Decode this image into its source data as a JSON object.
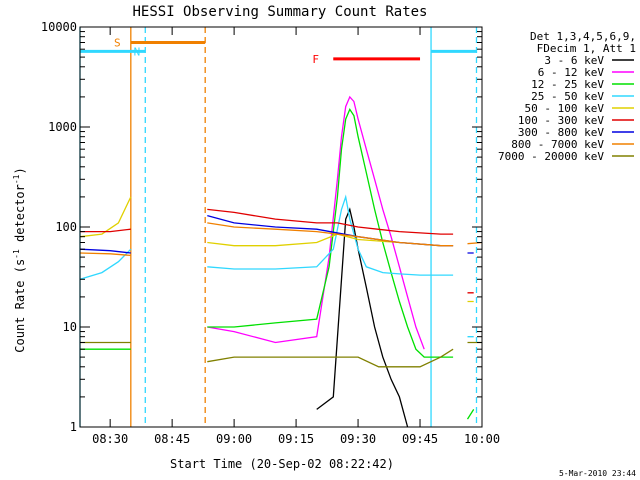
{
  "chart_data": {
    "type": "line",
    "title": "HESSI Observing Summary Count Rates",
    "xlabel": "Start Time (20-Sep-02 08:22:42)",
    "ylabel_main": "Count Rate (s",
    "ylabel_sup1": "-1",
    "ylabel_mid": " detector",
    "ylabel_sup2": "-1",
    "ylabel_end": ")",
    "yscale": "log",
    "xlim": [
      "08:22:42",
      "10:00:00"
    ],
    "ylim": [
      1,
      10000
    ],
    "x_ticks": [
      "08:30",
      "08:45",
      "09:00",
      "09:15",
      "09:30",
      "09:45",
      "10:00"
    ],
    "y_ticks": [
      {
        "value": 1,
        "label": "1"
      },
      {
        "value": 10,
        "label": "10"
      },
      {
        "value": 100,
        "label": "100"
      },
      {
        "value": 1000,
        "label": "1000"
      },
      {
        "value": 10000,
        "label": "10000"
      }
    ],
    "legend_header": [
      "Det 1,3,4,5,6,9,",
      "FDecim 1, Att 1"
    ],
    "legend_position": "outside-right",
    "timestamp": "5-Mar-2010 23:44",
    "flags": [
      {
        "label": "S",
        "start": "08:35:00",
        "end": "08:53:00",
        "level": 7000,
        "color": "#f08000"
      },
      {
        "label": "N",
        "start": "08:22:42",
        "end": "08:38:30",
        "level": 5700,
        "color": "#30d8ff"
      },
      {
        "label": "N",
        "start": "09:47:40",
        "end": "09:58:40",
        "level": 5700,
        "color": "#30d8ff"
      },
      {
        "label": "F",
        "start": "09:24:00",
        "end": "09:45:00",
        "level": 4800,
        "color": "#ff0000"
      }
    ],
    "flag_labels": [
      {
        "text": "S",
        "at": "08:34:00",
        "level": 7000,
        "color": "#f08000"
      },
      {
        "text": "N",
        "at": "08:38:45",
        "level": 5700,
        "color": "#30d8ff"
      },
      {
        "text": "F",
        "at": "09:22:00",
        "level": 4800,
        "color": "#ff0000"
      }
    ],
    "gaps": [
      {
        "start": "08:36:00",
        "end": "08:53:30"
      },
      {
        "start": "09:53:20",
        "end": "09:56:30"
      }
    ],
    "vlines": [
      {
        "t": "08:22:42",
        "color": "#30d8ff",
        "dash": false
      },
      {
        "t": "08:35:00",
        "color": "#f08000",
        "dash": false
      },
      {
        "t": "08:38:30",
        "color": "#30d8ff",
        "dash": true
      },
      {
        "t": "08:53:00",
        "color": "#f08000",
        "dash": true
      },
      {
        "t": "09:47:40",
        "color": "#30d8ff",
        "dash": false
      },
      {
        "t": "09:58:40",
        "color": "#30d8ff",
        "dash": true
      }
    ],
    "series": [
      {
        "name": "3 - 6 keV",
        "color": "#000000",
        "x": [
          "09:20:00",
          "09:24:00",
          "09:26:00",
          "09:27:00",
          "09:28:00",
          "09:29:00",
          "09:30:00",
          "09:32:00",
          "09:34:00",
          "09:36:00",
          "09:38:00",
          "09:40:00",
          "09:42:00"
        ],
        "y": [
          1.5,
          2,
          30,
          120,
          150,
          100,
          60,
          25,
          10,
          5,
          3,
          2,
          1
        ]
      },
      {
        "name": "6 - 12 keV",
        "color": "#ff00ff",
        "x": [
          "08:53:30",
          "09:00:00",
          "09:10:00",
          "09:20:00",
          "09:23:00",
          "09:25:00",
          "09:26:00",
          "09:27:00",
          "09:28:00",
          "09:29:00",
          "09:30:00",
          "09:32:00",
          "09:34:00",
          "09:36:00",
          "09:38:00",
          "09:40:00",
          "09:42:00",
          "09:44:00",
          "09:46:00"
        ],
        "y": [
          10,
          9,
          7,
          8,
          50,
          300,
          800,
          1600,
          2000,
          1800,
          1200,
          600,
          300,
          150,
          80,
          40,
          20,
          10,
          6
        ]
      },
      {
        "name": "12 - 25 keV",
        "color": "#00e000",
        "x": [
          "08:22:42",
          "08:30:00",
          "08:35:00",
          "08:53:30",
          "09:00:00",
          "09:10:00",
          "09:20:00",
          "09:23:00",
          "09:25:00",
          "09:26:00",
          "09:27:00",
          "09:28:00",
          "09:29:00",
          "09:30:00",
          "09:32:00",
          "09:34:00",
          "09:36:00",
          "09:38:00",
          "09:40:00",
          "09:42:00",
          "09:44:00",
          "09:46:00",
          "09:50:00",
          "09:53:00",
          "09:56:30",
          "09:58:00"
        ],
        "y": [
          6,
          6,
          6,
          10,
          10,
          11,
          12,
          40,
          200,
          600,
          1200,
          1500,
          1300,
          800,
          350,
          150,
          70,
          35,
          18,
          10,
          6,
          5,
          5,
          5,
          1.2,
          1.5
        ]
      },
      {
        "name": "25 - 50 keV",
        "color": "#30d8ff",
        "x": [
          "08:22:42",
          "08:28:00",
          "08:32:00",
          "08:35:00",
          "08:53:30",
          "09:00:00",
          "09:10:00",
          "09:20:00",
          "09:24:00",
          "09:26:00",
          "09:27:00",
          "09:28:00",
          "09:30:00",
          "09:32:00",
          "09:36:00",
          "09:40:00",
          "09:45:00",
          "09:50:00",
          "09:53:00",
          "09:56:30",
          "09:58:00"
        ],
        "y": [
          30,
          35,
          45,
          60,
          40,
          38,
          38,
          40,
          60,
          150,
          200,
          120,
          60,
          40,
          35,
          34,
          33,
          33,
          33,
          8,
          8
        ]
      },
      {
        "name": "50 - 100 keV",
        "color": "#e0d000",
        "x": [
          "08:22:42",
          "08:28:00",
          "08:32:00",
          "08:35:00",
          "08:53:30",
          "09:00:00",
          "09:10:00",
          "09:20:00",
          "09:25:00",
          "09:30:00",
          "09:40:00",
          "09:50:00",
          "09:53:00",
          "09:56:30",
          "09:58:00"
        ],
        "y": [
          80,
          85,
          110,
          200,
          70,
          65,
          65,
          70,
          85,
          75,
          70,
          65,
          65,
          18,
          18
        ]
      },
      {
        "name": "100 - 300 keV",
        "color": "#e00000",
        "x": [
          "08:22:42",
          "08:30:00",
          "08:35:00",
          "08:53:30",
          "09:00:00",
          "09:10:00",
          "09:20:00",
          "09:25:00",
          "09:30:00",
          "09:40:00",
          "09:50:00",
          "09:53:00",
          "09:56:30",
          "09:58:00"
        ],
        "y": [
          90,
          90,
          95,
          150,
          140,
          120,
          110,
          110,
          100,
          90,
          85,
          85,
          22,
          22
        ]
      },
      {
        "name": "300 - 800 keV",
        "color": "#0000e0",
        "x": [
          "08:22:42",
          "08:30:00",
          "08:35:00",
          "08:53:30",
          "09:00:00",
          "09:10:00",
          "09:20:00",
          "09:30:00",
          "09:40:00",
          "09:50:00",
          "09:53:00",
          "09:56:30",
          "09:58:00"
        ],
        "y": [
          60,
          58,
          55,
          130,
          110,
          100,
          95,
          80,
          70,
          65,
          65,
          55,
          55
        ]
      },
      {
        "name": "800 - 7000 keV",
        "color": "#f08000",
        "x": [
          "08:22:42",
          "08:30:00",
          "08:35:00",
          "08:53:30",
          "09:00:00",
          "09:10:00",
          "09:20:00",
          "09:30:00",
          "09:40:00",
          "09:50:00",
          "09:53:00",
          "09:56:30",
          "10:00:00"
        ],
        "y": [
          55,
          54,
          52,
          110,
          100,
          95,
          90,
          80,
          70,
          65,
          65,
          68,
          70
        ]
      },
      {
        "name": "7000 - 20000 keV",
        "color": "#808000",
        "x": [
          "08:22:42",
          "08:30:00",
          "08:35:00",
          "08:53:30",
          "09:00:00",
          "09:10:00",
          "09:20:00",
          "09:25:00",
          "09:30:00",
          "09:35:00",
          "09:40:00",
          "09:45:00",
          "09:50:00",
          "09:53:00",
          "09:56:30",
          "10:00:00"
        ],
        "y": [
          7,
          7,
          7,
          4.5,
          5,
          5,
          5,
          5,
          5,
          4,
          4,
          4,
          5,
          6,
          7,
          7
        ]
      }
    ]
  }
}
